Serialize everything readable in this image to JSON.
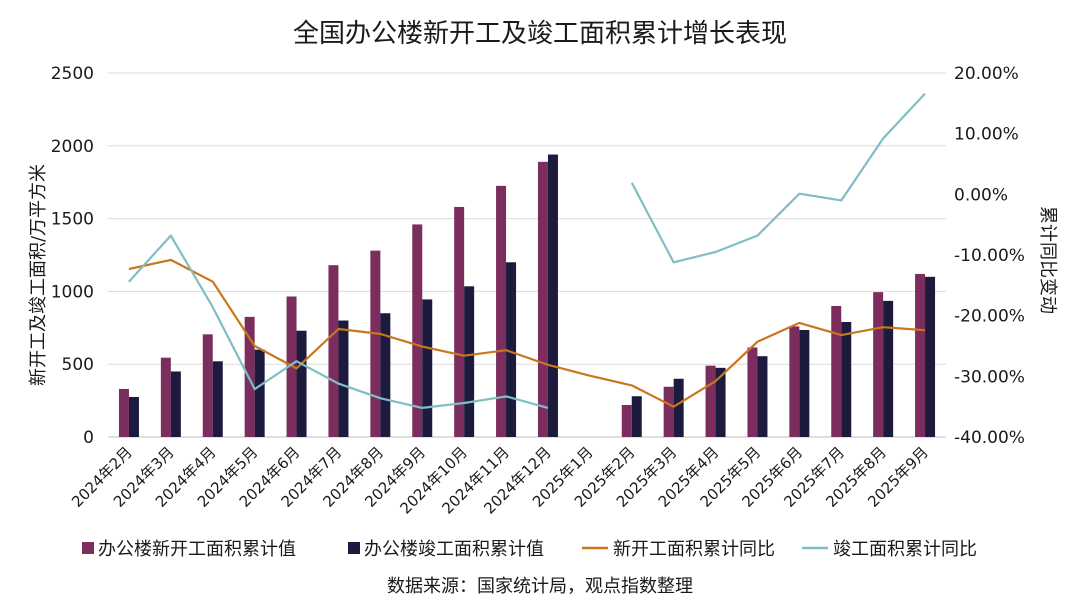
{
  "chart_data": {
    "type": "bar",
    "title": "全国办公楼新开工及竣工面积累计增长表现",
    "categories": [
      "2024年2月",
      "2024年3月",
      "2024年4月",
      "2024年5月",
      "2024年6月",
      "2024年7月",
      "2024年8月",
      "2024年9月",
      "2024年10月",
      "2024年11月",
      "2024年12月",
      "2025年1月",
      "2025年2月",
      "2025年3月",
      "2025年4月",
      "2025年5月",
      "2025年6月",
      "2025年7月",
      "2025年8月",
      "2025年9月"
    ],
    "ylabel": "新开工及竣工面积/万平方米",
    "y2label": "累计同比变动",
    "ylim": [
      0,
      2500
    ],
    "yticks": [
      "0",
      "500",
      "1000",
      "1500",
      "2000",
      "2500"
    ],
    "y2lim": [
      -40,
      20
    ],
    "y2ticks": [
      "-40.00%",
      "-30.00%",
      "-20.00%",
      "-10.00%",
      "0.00%",
      "10.00%",
      "20.00%"
    ],
    "series": [
      {
        "name": "办公楼新开工面积累计值",
        "kind": "bar",
        "axis": "left",
        "color": "#7b2e5e",
        "values": [
          330,
          545,
          705,
          825,
          965,
          1180,
          1280,
          1460,
          1580,
          1725,
          1890,
          null,
          220,
          345,
          490,
          615,
          760,
          900,
          995,
          1120
        ]
      },
      {
        "name": "办公楼竣工面积累计值",
        "kind": "bar",
        "axis": "left",
        "color": "#1c1a3d",
        "values": [
          275,
          450,
          520,
          600,
          730,
          800,
          850,
          945,
          1035,
          1200,
          1940,
          null,
          280,
          400,
          475,
          555,
          735,
          790,
          935,
          1100
        ]
      },
      {
        "name": "新开工面积累计同比",
        "kind": "line",
        "axis": "right",
        "color": "#c9761d",
        "values": [
          -12.3,
          -10.8,
          -14.4,
          -25.0,
          -28.7,
          -22.2,
          -23.0,
          -25.1,
          -26.6,
          -25.7,
          -28.1,
          -29.9,
          -31.5,
          -35.0,
          -30.8,
          -24.3,
          -21.2,
          -23.2,
          -21.9,
          -22.4
        ]
      },
      {
        "name": "竣工面积累计同比",
        "kind": "line",
        "axis": "right",
        "color": "#7fbec3",
        "values": [
          -14.4,
          -6.8,
          -18.6,
          -32.1,
          -27.5,
          -31.2,
          -33.6,
          -35.2,
          -34.4,
          -33.3,
          -35.2,
          null,
          1.9,
          -11.2,
          -9.5,
          -6.8,
          0.1,
          -1.0,
          9.2,
          16.6
        ]
      }
    ],
    "legend_position": "bottom",
    "source": "数据来源：国家统计局，观点指数整理"
  }
}
